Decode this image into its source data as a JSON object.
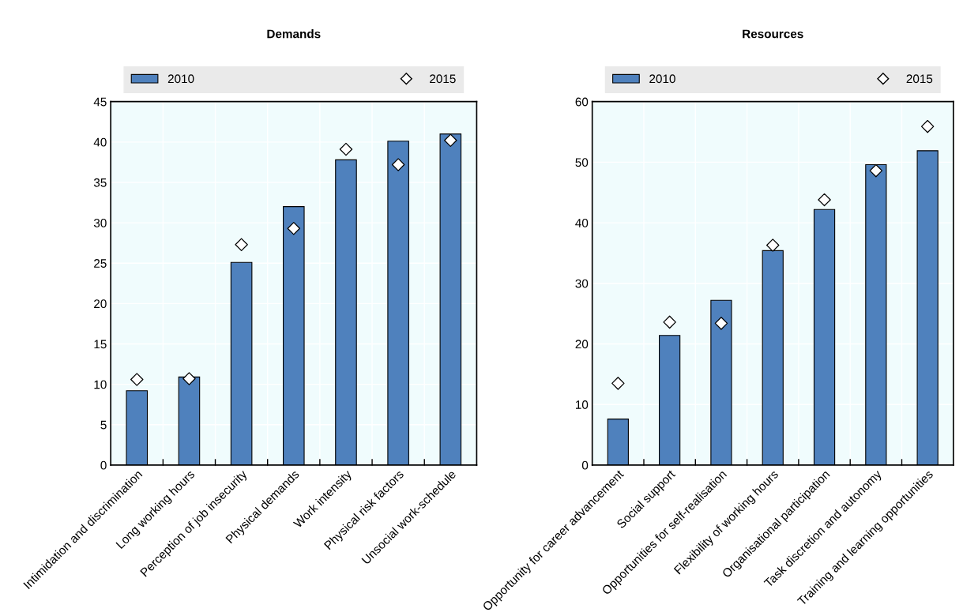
{
  "chart_data": [
    {
      "type": "bar",
      "title": "Demands",
      "categories": [
        "Intimidation and discrimination",
        "Long working hours",
        "Perception of job insecurity",
        "Physical demands",
        "Work intensity",
        "Physical risk factors",
        "Unsocial work-schedule"
      ],
      "series": [
        {
          "name": "2010",
          "color": "#4f81bd",
          "values": [
            9.2,
            10.9,
            25.1,
            32.0,
            37.8,
            40.1,
            41.0
          ]
        },
        {
          "name": "2015",
          "type": "scatter",
          "color": "#ffffff",
          "marker": "diamond",
          "values": [
            10.6,
            10.7,
            27.3,
            29.3,
            39.1,
            37.2,
            40.2
          ]
        }
      ],
      "ylim": [
        0,
        45
      ],
      "yticks": [
        0,
        5,
        10,
        15,
        20,
        25,
        30,
        35,
        40,
        45
      ],
      "grid": true,
      "legend": "top"
    },
    {
      "type": "bar",
      "title": "Resources",
      "categories": [
        "Opportunity for career advancement",
        "Social support",
        "Opportunities for self-realisation",
        "Flexibility of working hours",
        "Organisational participation",
        "Task discretion and autonomy",
        "Training and learning opportunities"
      ],
      "series": [
        {
          "name": "2010",
          "color": "#4f81bd",
          "values": [
            7.6,
            21.4,
            27.2,
            35.4,
            42.2,
            49.6,
            51.9
          ]
        },
        {
          "name": "2015",
          "type": "scatter",
          "color": "#ffffff",
          "marker": "diamond",
          "values": [
            13.5,
            23.6,
            23.4,
            36.3,
            43.8,
            48.6,
            55.9
          ]
        }
      ],
      "ylim": [
        0,
        60
      ],
      "yticks": [
        0,
        10,
        20,
        30,
        40,
        50,
        60
      ],
      "grid": true,
      "legend": "top"
    }
  ]
}
